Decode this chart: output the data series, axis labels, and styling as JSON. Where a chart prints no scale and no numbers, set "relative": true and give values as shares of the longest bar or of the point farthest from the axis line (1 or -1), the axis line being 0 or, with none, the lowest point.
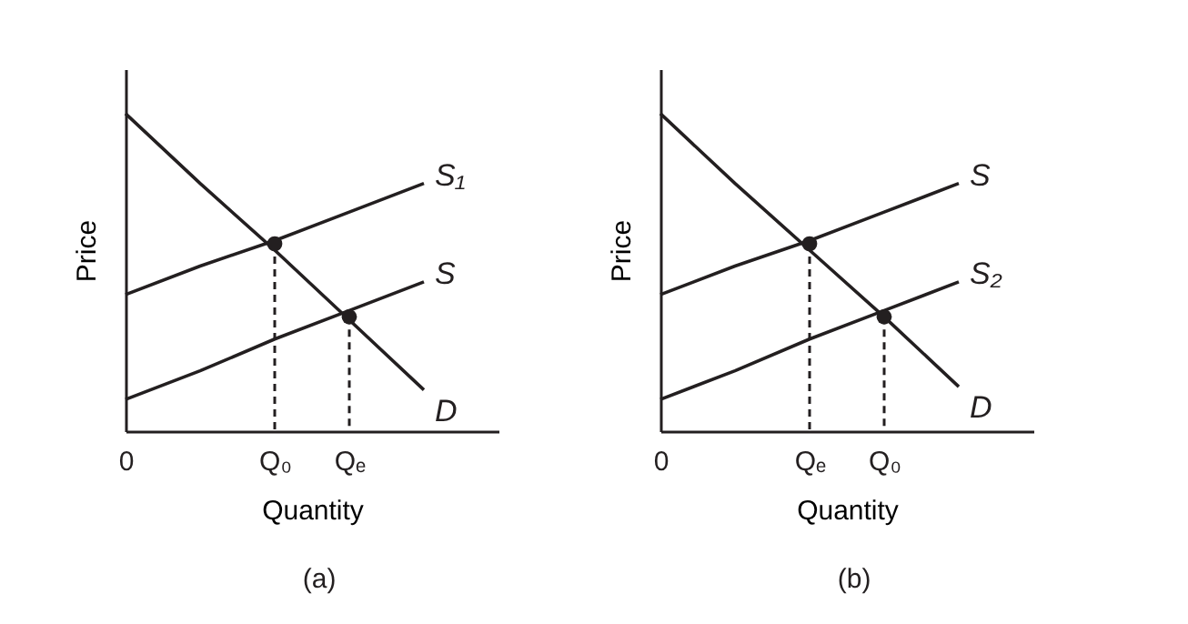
{
  "chart_data": [
    {
      "type": "line",
      "relative": true,
      "xlabel": "Quantity",
      "ylabel": "Price",
      "annotations": [
        "(a)"
      ],
      "categories": [
        "0",
        null,
        "Q₀",
        "Qₑ",
        null,
        null
      ],
      "series": [
        {
          "name": "S₁",
          "color": "#231f20",
          "values": [
            0.43,
            0.52,
            0.6,
            0.69,
            0.78,
            null
          ]
        },
        {
          "name": "S",
          "color": "#231f20",
          "values": [
            0.1,
            0.19,
            0.29,
            0.38,
            0.47,
            null
          ]
        },
        {
          "name": "D",
          "color": "#231f20",
          "values": [
            1.0,
            0.78,
            0.57,
            0.35,
            0.13,
            null
          ]
        },
        {
          "type": "lollipop",
          "line_style": "dashed",
          "marker": "circle",
          "color": "#231f20",
          "values": [
            null,
            null,
            0.59,
            0.36,
            null,
            null
          ]
        }
      ]
    },
    {
      "type": "line",
      "relative": true,
      "xlabel": "Quantity",
      "ylabel": "Price",
      "annotations": [
        "(b)"
      ],
      "categories": [
        "0",
        null,
        "Qₑ",
        "Q₀",
        null,
        null
      ],
      "series": [
        {
          "name": "S",
          "color": "#231f20",
          "values": [
            0.43,
            0.52,
            0.6,
            0.69,
            0.78,
            null
          ]
        },
        {
          "name": "S₂",
          "color": "#231f20",
          "values": [
            0.1,
            0.19,
            0.29,
            0.38,
            0.47,
            null
          ]
        },
        {
          "name": "D",
          "color": "#231f20",
          "values": [
            1.0,
            0.78,
            0.57,
            0.36,
            0.14,
            null
          ]
        },
        {
          "type": "lollipop",
          "line_style": "dashed",
          "marker": "circle",
          "color": "#231f20",
          "values": [
            null,
            null,
            0.59,
            0.36,
            null,
            null
          ]
        }
      ]
    }
  ]
}
